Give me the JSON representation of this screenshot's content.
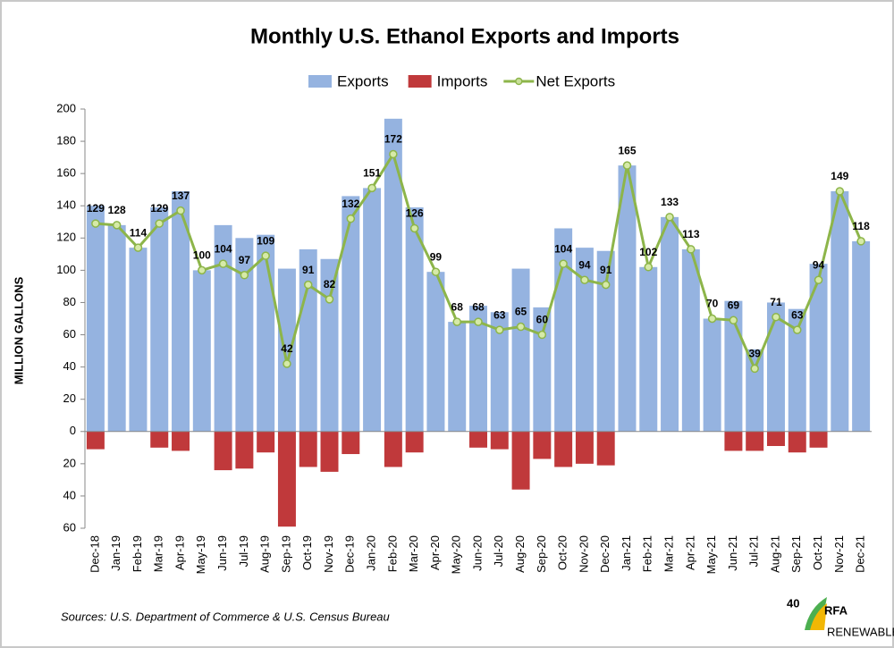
{
  "chart_data": {
    "type": "bar-line",
    "title": "Monthly U.S. Ethanol Exports and Imports",
    "y_label": "MILLION GALLONS",
    "source": "Sources: U.S. Department of Commerce & U.S. Census Bureau",
    "logo": {
      "text": "RFA",
      "subtitle": "RENEWABLE FUELS ASSOCIATION",
      "badge": "40"
    },
    "categories": [
      "Dec-18",
      "Jan-19",
      "Feb-19",
      "Mar-19",
      "Apr-19",
      "May-19",
      "Jun-19",
      "Jul-19",
      "Aug-19",
      "Sep-19",
      "Oct-19",
      "Nov-19",
      "Dec-19",
      "Jan-20",
      "Feb-20",
      "Mar-20",
      "Apr-20",
      "May-20",
      "Jun-20",
      "Jul-20",
      "Aug-20",
      "Sep-20",
      "Oct-20",
      "Nov-20",
      "Dec-20",
      "Jan-21",
      "Feb-21",
      "Mar-21",
      "Apr-21",
      "May-21",
      "Jun-21",
      "Jul-21",
      "Aug-21",
      "Sep-21",
      "Oct-21",
      "Nov-21",
      "Dec-21"
    ],
    "series": [
      {
        "name": "Exports",
        "kind": "bar",
        "color": "#95b3e0",
        "values": [
          140,
          128,
          114,
          139,
          149,
          100,
          128,
          120,
          122,
          101,
          113,
          107,
          146,
          151,
          194,
          139,
          99,
          68,
          78,
          74,
          101,
          77,
          126,
          114,
          112,
          165,
          102,
          133,
          113,
          70,
          81,
          51,
          80,
          76,
          104,
          149,
          118
        ]
      },
      {
        "name": "Imports",
        "kind": "bar",
        "color": "#c0393b",
        "values": [
          -11,
          0,
          0,
          -10,
          -12,
          0,
          -24,
          -23,
          -13,
          -59,
          -22,
          -25,
          -14,
          0,
          -22,
          -13,
          0,
          0,
          -10,
          -11,
          -36,
          -17,
          -22,
          -20,
          -21,
          0,
          0,
          0,
          0,
          0,
          -12,
          -12,
          -9,
          -13,
          -10,
          0,
          0
        ]
      },
      {
        "name": "Net Exports",
        "kind": "line",
        "color": "#8db54a",
        "values": [
          129,
          128,
          114,
          129,
          137,
          100,
          104,
          97,
          109,
          42,
          91,
          82,
          132,
          151,
          172,
          126,
          99,
          68,
          68,
          63,
          65,
          60,
          104,
          94,
          91,
          165,
          102,
          133,
          113,
          70,
          69,
          39,
          71,
          63,
          94,
          149,
          118
        ]
      }
    ],
    "ylim": [
      -60,
      200
    ],
    "yticks": [
      {
        "value": -60,
        "label": "60"
      },
      {
        "value": -40,
        "label": "40"
      },
      {
        "value": -20,
        "label": "20"
      },
      0,
      20,
      40,
      60,
      80,
      100,
      120,
      140,
      160,
      180,
      200
    ],
    "grid": false
  }
}
